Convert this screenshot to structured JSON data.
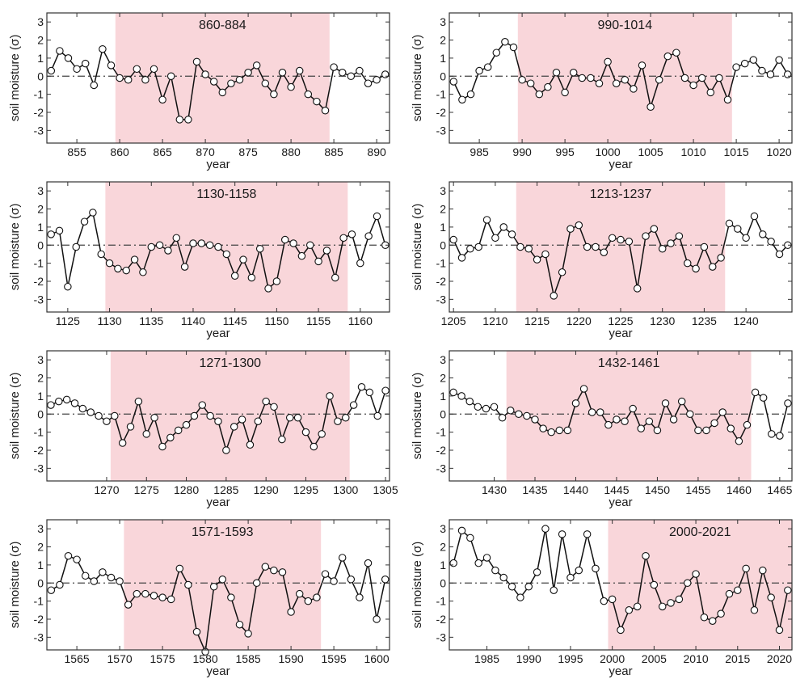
{
  "colors": {
    "shade": "#f9d6da",
    "line": "#111111",
    "marker_fill": "#ffffff",
    "zero_line": "#444444"
  },
  "chart_data": [
    {
      "type": "line",
      "title": "860-884",
      "xlabel": "year",
      "ylabel": "soil moisture (σ)",
      "xlim": [
        851.5,
        891.5
      ],
      "ylim": [
        -3.7,
        3.5
      ],
      "xticks": [
        855,
        860,
        865,
        870,
        875,
        880,
        885,
        890
      ],
      "yticks": [
        -3,
        -2,
        -1,
        0,
        1,
        2,
        3
      ],
      "shaded_range": [
        859.5,
        884.5
      ],
      "x": [
        852,
        853,
        854,
        855,
        856,
        857,
        858,
        859,
        860,
        861,
        862,
        863,
        864,
        865,
        866,
        867,
        868,
        869,
        870,
        871,
        872,
        873,
        874,
        875,
        876,
        877,
        878,
        879,
        880,
        881,
        882,
        883,
        884,
        885,
        886,
        887,
        888,
        889,
        890,
        891
      ],
      "values": [
        0.3,
        1.4,
        1.0,
        0.4,
        0.7,
        -0.5,
        1.5,
        0.6,
        -0.1,
        -0.2,
        0.4,
        -0.2,
        0.4,
        -1.3,
        0.0,
        -2.4,
        -2.4,
        0.8,
        0.1,
        -0.3,
        -0.9,
        -0.4,
        -0.2,
        0.2,
        0.6,
        -0.4,
        -1.0,
        0.2,
        -0.6,
        0.3,
        -1.0,
        -1.4,
        -1.9,
        0.5,
        0.2,
        0.0,
        0.3,
        -0.4,
        -0.2,
        0.1
      ]
    },
    {
      "type": "line",
      "title": "990-1014",
      "xlabel": "year",
      "ylabel": "soil moisture (σ)",
      "xlim": [
        981.5,
        1021.5
      ],
      "ylim": [
        -3.7,
        3.5
      ],
      "xticks": [
        985,
        990,
        995,
        1000,
        1005,
        1010,
        1015,
        1020
      ],
      "yticks": [
        -3,
        -2,
        -1,
        0,
        1,
        2,
        3
      ],
      "shaded_range": [
        989.5,
        1014.5
      ],
      "x": [
        982,
        983,
        984,
        985,
        986,
        987,
        988,
        989,
        990,
        991,
        992,
        993,
        994,
        995,
        996,
        997,
        998,
        999,
        1000,
        1001,
        1002,
        1003,
        1004,
        1005,
        1006,
        1007,
        1008,
        1009,
        1010,
        1011,
        1012,
        1013,
        1014,
        1015,
        1016,
        1017,
        1018,
        1019,
        1020,
        1021
      ],
      "values": [
        -0.3,
        -1.3,
        -1.0,
        0.3,
        0.5,
        1.3,
        1.9,
        1.6,
        -0.2,
        -0.4,
        -1.0,
        -0.6,
        0.2,
        -0.9,
        0.2,
        -0.1,
        -0.1,
        -0.4,
        0.8,
        -0.4,
        -0.2,
        -0.7,
        0.6,
        -1.7,
        -0.2,
        1.1,
        1.3,
        -0.1,
        -0.5,
        -0.1,
        -0.9,
        -0.1,
        -1.3,
        0.5,
        0.7,
        0.9,
        0.3,
        0.1,
        0.9,
        0.1
      ]
    },
    {
      "type": "line",
      "title": "1130-1158",
      "xlabel": "year",
      "ylabel": "soil moisture (σ)",
      "xlim": [
        1122.5,
        1163.5
      ],
      "ylim": [
        -3.7,
        3.5
      ],
      "xticks": [
        1125,
        1130,
        1135,
        1140,
        1145,
        1150,
        1155,
        1160
      ],
      "yticks": [
        -3,
        -2,
        -1,
        0,
        1,
        2,
        3
      ],
      "shaded_range": [
        1129.5,
        1158.5
      ],
      "x": [
        1123,
        1124,
        1125,
        1126,
        1127,
        1128,
        1129,
        1130,
        1131,
        1132,
        1133,
        1134,
        1135,
        1136,
        1137,
        1138,
        1139,
        1140,
        1141,
        1142,
        1143,
        1144,
        1145,
        1146,
        1147,
        1148,
        1149,
        1150,
        1151,
        1152,
        1153,
        1154,
        1155,
        1156,
        1157,
        1158,
        1159,
        1160,
        1161,
        1162,
        1163
      ],
      "values": [
        0.6,
        0.8,
        -2.3,
        -0.1,
        1.3,
        1.8,
        -0.5,
        -1.0,
        -1.3,
        -1.4,
        -0.8,
        -1.5,
        -0.1,
        0.0,
        -0.3,
        0.4,
        -1.2,
        0.1,
        0.1,
        0.0,
        -0.1,
        -0.5,
        -1.7,
        -0.8,
        -1.8,
        -0.2,
        -2.4,
        -2.0,
        0.3,
        0.1,
        -0.6,
        0.0,
        -0.9,
        -0.3,
        -1.8,
        0.4,
        0.6,
        -1.0,
        0.5,
        1.6,
        0.0
      ]
    },
    {
      "type": "line",
      "title": "1213-1237",
      "xlabel": "year",
      "ylabel": "soil moisture (σ)",
      "xlim": [
        1204.5,
        1245.5
      ],
      "ylim": [
        -3.7,
        3.5
      ],
      "xticks": [
        1205,
        1210,
        1215,
        1220,
        1225,
        1230,
        1235,
        1240
      ],
      "yticks": [
        -3,
        -2,
        -1,
        0,
        1,
        2,
        3
      ],
      "shaded_range": [
        1212.5,
        1237.5
      ],
      "x": [
        1205,
        1206,
        1207,
        1208,
        1209,
        1210,
        1211,
        1212,
        1213,
        1214,
        1215,
        1216,
        1217,
        1218,
        1219,
        1220,
        1221,
        1222,
        1223,
        1224,
        1225,
        1226,
        1227,
        1228,
        1229,
        1230,
        1231,
        1232,
        1233,
        1234,
        1235,
        1236,
        1237,
        1238,
        1239,
        1240,
        1241,
        1242,
        1243,
        1244,
        1245
      ],
      "values": [
        0.3,
        -0.7,
        -0.2,
        -0.1,
        1.4,
        0.4,
        1.0,
        0.6,
        -0.1,
        -0.2,
        -0.8,
        -0.5,
        -2.8,
        -1.5,
        0.9,
        1.1,
        -0.1,
        -0.1,
        -0.4,
        0.4,
        0.3,
        0.2,
        -2.4,
        0.5,
        0.9,
        -0.2,
        0.1,
        0.5,
        -1.0,
        -1.3,
        -0.1,
        -1.2,
        -0.7,
        1.2,
        0.9,
        0.4,
        1.6,
        0.6,
        0.2,
        -0.5,
        0.0
      ]
    },
    {
      "type": "line",
      "title": "1271-1300",
      "xlabel": "year",
      "ylabel": "soil moisture (σ)",
      "xlim": [
        1262.5,
        1305.5
      ],
      "ylim": [
        -3.7,
        3.5
      ],
      "xticks": [
        1270,
        1275,
        1280,
        1285,
        1290,
        1295,
        1300,
        1305
      ],
      "yticks": [
        -3,
        -2,
        -1,
        0,
        1,
        2,
        3
      ],
      "shaded_range": [
        1270.5,
        1300.5
      ],
      "x": [
        1263,
        1264,
        1265,
        1266,
        1267,
        1268,
        1269,
        1270,
        1271,
        1272,
        1273,
        1274,
        1275,
        1276,
        1277,
        1278,
        1279,
        1280,
        1281,
        1282,
        1283,
        1284,
        1285,
        1286,
        1287,
        1288,
        1289,
        1290,
        1291,
        1292,
        1293,
        1294,
        1295,
        1296,
        1297,
        1298,
        1299,
        1300,
        1301,
        1302,
        1303,
        1304,
        1305
      ],
      "values": [
        0.5,
        0.7,
        0.8,
        0.6,
        0.3,
        0.1,
        -0.1,
        -0.4,
        -0.1,
        -1.6,
        -0.7,
        0.7,
        -1.1,
        -0.2,
        -1.8,
        -1.3,
        -0.9,
        -0.6,
        -0.1,
        0.5,
        -0.1,
        -0.4,
        -2.0,
        -0.7,
        -0.3,
        -1.7,
        -0.4,
        0.7,
        0.4,
        -1.4,
        -0.2,
        -0.2,
        -1.0,
        -1.8,
        -1.1,
        1.0,
        -0.4,
        -0.2,
        0.5,
        1.5,
        1.2,
        -0.1,
        1.3
      ]
    },
    {
      "type": "line",
      "title": "1432-1461",
      "xlabel": "year",
      "ylabel": "soil moisture (σ)",
      "xlim": [
        1424.5,
        1466.5
      ],
      "ylim": [
        -3.7,
        3.5
      ],
      "xticks": [
        1430,
        1435,
        1440,
        1445,
        1450,
        1455,
        1460,
        1465
      ],
      "yticks": [
        -3,
        -2,
        -1,
        0,
        1,
        2,
        3
      ],
      "shaded_range": [
        1431.5,
        1461.5
      ],
      "x": [
        1425,
        1426,
        1427,
        1428,
        1429,
        1430,
        1431,
        1432,
        1433,
        1434,
        1435,
        1436,
        1437,
        1438,
        1439,
        1440,
        1441,
        1442,
        1443,
        1444,
        1445,
        1446,
        1447,
        1448,
        1449,
        1450,
        1451,
        1452,
        1453,
        1454,
        1455,
        1456,
        1457,
        1458,
        1459,
        1460,
        1461,
        1462,
        1463,
        1464,
        1465,
        1466
      ],
      "values": [
        1.2,
        1.0,
        0.7,
        0.4,
        0.3,
        0.4,
        -0.2,
        0.2,
        0.0,
        -0.1,
        -0.3,
        -0.8,
        -1.0,
        -0.9,
        -0.9,
        0.6,
        1.4,
        0.1,
        0.1,
        -0.6,
        -0.3,
        -0.4,
        0.3,
        -0.8,
        -0.4,
        -0.9,
        0.6,
        -0.3,
        0.7,
        0.0,
        -0.9,
        -0.9,
        -0.5,
        0.1,
        -0.8,
        -1.5,
        -0.6,
        1.2,
        0.9,
        -1.1,
        -1.2,
        0.6
      ]
    },
    {
      "type": "line",
      "title": "1571-1593",
      "xlabel": "year",
      "ylabel": "soil moisture (σ)",
      "xlim": [
        1561.5,
        1601.5
      ],
      "ylim": [
        -3.7,
        3.5
      ],
      "xticks": [
        1565,
        1570,
        1575,
        1580,
        1585,
        1590,
        1595,
        1600
      ],
      "yticks": [
        -3,
        -2,
        -1,
        0,
        1,
        2,
        3
      ],
      "shaded_range": [
        1570.5,
        1593.5
      ],
      "x": [
        1562,
        1563,
        1564,
        1565,
        1566,
        1567,
        1568,
        1569,
        1570,
        1571,
        1572,
        1573,
        1574,
        1575,
        1576,
        1577,
        1578,
        1579,
        1580,
        1581,
        1582,
        1583,
        1584,
        1585,
        1586,
        1587,
        1588,
        1589,
        1590,
        1591,
        1592,
        1593,
        1594,
        1595,
        1596,
        1597,
        1598,
        1599,
        1600,
        1601
      ],
      "values": [
        -0.4,
        -0.1,
        1.5,
        1.3,
        0.4,
        0.1,
        0.6,
        0.3,
        0.1,
        -1.2,
        -0.6,
        -0.6,
        -0.7,
        -0.8,
        -0.9,
        0.8,
        -0.1,
        -2.7,
        -3.8,
        -0.2,
        0.2,
        -0.8,
        -2.3,
        -2.8,
        0.0,
        0.9,
        0.7,
        0.6,
        -1.6,
        -0.6,
        -1.0,
        -0.8,
        0.5,
        0.1,
        1.4,
        0.2,
        -0.8,
        1.1,
        -2.0,
        0.2
      ]
    },
    {
      "type": "line",
      "title": "2000-2021",
      "xlabel": "year",
      "ylabel": "soil moisture (σ)",
      "xlim": [
        1980.5,
        2021.5
      ],
      "ylim": [
        -3.7,
        3.5
      ],
      "xticks": [
        1985,
        1990,
        1995,
        2000,
        2005,
        2010,
        2015,
        2020
      ],
      "yticks": [
        -3,
        -2,
        -1,
        0,
        1,
        2,
        3
      ],
      "shaded_range": [
        1999.5,
        2021.5
      ],
      "x": [
        1981,
        1982,
        1983,
        1984,
        1985,
        1986,
        1987,
        1988,
        1989,
        1990,
        1991,
        1992,
        1993,
        1994,
        1995,
        1996,
        1997,
        1998,
        1999,
        2000,
        2001,
        2002,
        2003,
        2004,
        2005,
        2006,
        2007,
        2008,
        2009,
        2010,
        2011,
        2012,
        2013,
        2014,
        2015,
        2016,
        2017,
        2018,
        2019,
        2020,
        2021
      ],
      "values": [
        1.1,
        2.9,
        2.5,
        1.1,
        1.4,
        0.7,
        0.3,
        -0.2,
        -0.8,
        -0.2,
        0.6,
        3.0,
        -0.4,
        2.7,
        0.3,
        0.7,
        2.7,
        0.8,
        -1.0,
        -0.9,
        -2.6,
        -1.5,
        -1.3,
        1.5,
        -0.1,
        -1.3,
        -1.1,
        -0.9,
        0.0,
        0.5,
        -1.9,
        -2.1,
        -1.7,
        -0.6,
        -0.4,
        0.8,
        -1.5,
        0.7,
        -0.8,
        -2.6,
        -0.4
      ]
    }
  ]
}
